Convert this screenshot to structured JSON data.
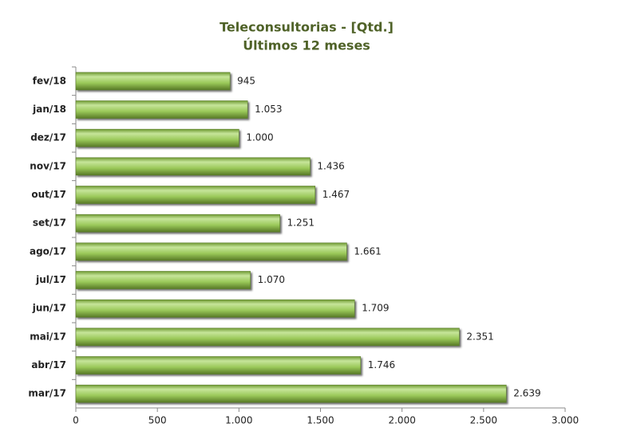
{
  "chart_data": {
    "type": "hbar",
    "title": "Teleconsultorias -  [Qtd.]",
    "subtitle": "Últimos 12 meses",
    "categories": [
      "fev/18",
      "jan/18",
      "dez/17",
      "nov/17",
      "out/17",
      "set/17",
      "ago/17",
      "jul/17",
      "jun/17",
      "mai/17",
      "abr/17",
      "mar/17"
    ],
    "values": [
      945,
      1053,
      1000,
      1436,
      1467,
      1251,
      1661,
      1070,
      1709,
      2351,
      1746,
      2639
    ],
    "value_labels": [
      "945",
      "1.053",
      "1.000",
      "1.436",
      "1.467",
      "1.251",
      "1.661",
      "1.070",
      "1.709",
      "2.351",
      "1.746",
      "2.639"
    ],
    "color": "#92c04f",
    "xlim": [
      0,
      3000
    ],
    "xticks": [
      0,
      500,
      {
        "value": 1000,
        "label": "1.000"
      },
      {
        "value": 1500,
        "label": "1.500"
      },
      {
        "value": 2000,
        "label": "2.000"
      },
      {
        "value": 2500,
        "label": "2.500"
      },
      {
        "value": 3000,
        "label": "3.000"
      }
    ]
  }
}
